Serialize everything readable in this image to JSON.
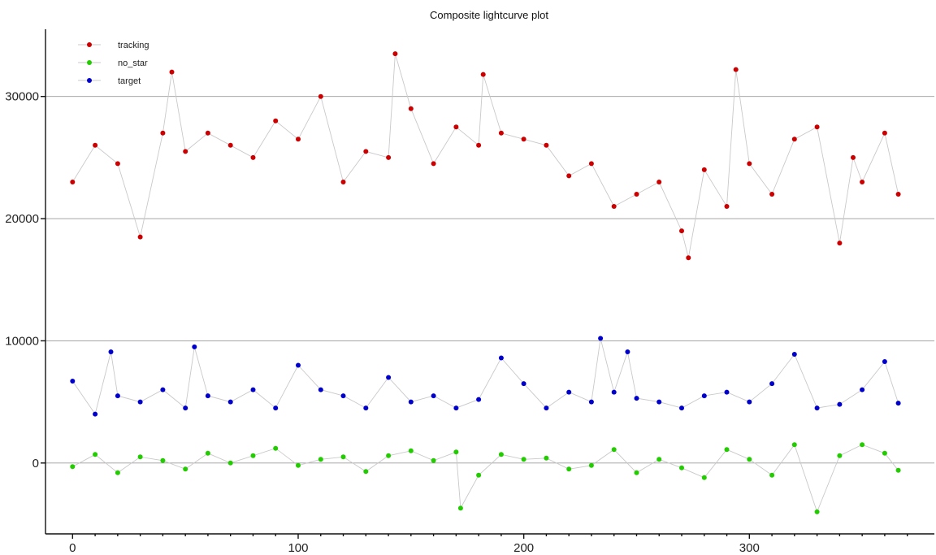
{
  "chart_data": {
    "type": "line",
    "title": "Composite lightcurve plot",
    "xlabel": "",
    "ylabel": "",
    "xlim": [
      -12,
      382
    ],
    "ylim": [
      -5800,
      35500
    ],
    "xticks": [
      0,
      100,
      200,
      300
    ],
    "yticks": [
      0,
      10000,
      20000,
      30000
    ],
    "xtick_labels": [
      "0",
      "100",
      "200",
      "300"
    ],
    "ytick_labels": [
      "0",
      "10000",
      "20000",
      "30000"
    ],
    "grid": "horizontal",
    "legend_position": "top-left",
    "series": [
      {
        "name": "tracking",
        "color": "#cc0000",
        "x": [
          0,
          10,
          20,
          30,
          40,
          44,
          50,
          60,
          70,
          80,
          90,
          100,
          110,
          120,
          130,
          140,
          143,
          150,
          160,
          170,
          180,
          182,
          190,
          200,
          210,
          220,
          230,
          240,
          250,
          260,
          270,
          273,
          280,
          290,
          294,
          300,
          310,
          320,
          330,
          340,
          346,
          350,
          360,
          366
        ],
        "values": [
          23000,
          26000,
          24500,
          18500,
          27000,
          32000,
          25500,
          27000,
          26000,
          25000,
          28000,
          26500,
          30000,
          23000,
          25500,
          25000,
          33500,
          29000,
          24500,
          27500,
          26000,
          31800,
          27000,
          26500,
          26000,
          23500,
          24500,
          21000,
          22000,
          23000,
          19000,
          16800,
          24000,
          21000,
          32200,
          24500,
          22000,
          26500,
          27500,
          18000,
          25000,
          23000,
          27000,
          22000
        ]
      },
      {
        "name": "no_star",
        "color": "#22cc00",
        "x": [
          0,
          10,
          20,
          30,
          40,
          50,
          60,
          70,
          80,
          90,
          100,
          110,
          120,
          130,
          140,
          150,
          160,
          170,
          172,
          180,
          190,
          200,
          210,
          220,
          230,
          240,
          250,
          260,
          270,
          280,
          290,
          300,
          310,
          320,
          330,
          340,
          350,
          360,
          366
        ],
        "values": [
          -300,
          700,
          -800,
          500,
          200,
          -500,
          800,
          0,
          600,
          1200,
          -200,
          300,
          500,
          -700,
          600,
          1000,
          200,
          900,
          -3700,
          -1000,
          700,
          300,
          400,
          -500,
          -200,
          1100,
          -800,
          300,
          -400,
          -1200,
          1100,
          300,
          -1000,
          1500,
          -4000,
          600,
          1500,
          800,
          -600
        ]
      },
      {
        "name": "target",
        "color": "#0000cc",
        "x": [
          0,
          10,
          17,
          20,
          30,
          40,
          50,
          54,
          60,
          70,
          80,
          90,
          100,
          110,
          120,
          130,
          140,
          150,
          160,
          170,
          180,
          190,
          200,
          210,
          220,
          230,
          234,
          240,
          246,
          250,
          260,
          270,
          280,
          290,
          300,
          310,
          320,
          330,
          340,
          350,
          360,
          366
        ],
        "values": [
          6700,
          4000,
          9100,
          5500,
          5000,
          6000,
          4500,
          9500,
          5500,
          5000,
          6000,
          4500,
          8000,
          6000,
          5500,
          4500,
          7000,
          5000,
          5500,
          4500,
          5200,
          8600,
          6500,
          4500,
          5800,
          5000,
          10200,
          5800,
          9100,
          5300,
          5000,
          4500,
          5500,
          5800,
          5000,
          6500,
          8900,
          4500,
          4800,
          6000,
          8300,
          4900
        ]
      }
    ]
  }
}
